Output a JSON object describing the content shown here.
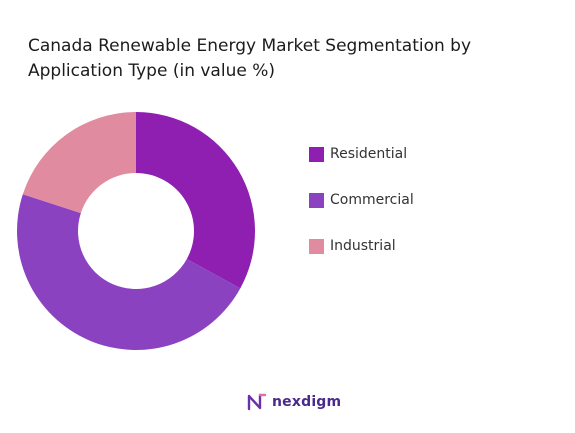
{
  "title": "Canada Renewable Energy Market Segmentation by Application Type (in value %)",
  "chart_data": {
    "type": "pie",
    "donut": true,
    "title": "Canada Renewable Energy Market Segmentation by Application Type (in value %)",
    "categories": [
      "Residential",
      "Commercial",
      "Industrial"
    ],
    "values": [
      33,
      47,
      20
    ],
    "colors": [
      "#8e1fb0",
      "#8b42c1",
      "#e08ba0"
    ],
    "legend_position": "right"
  },
  "legend": [
    {
      "label": "Residential",
      "color": "#8e1fb0"
    },
    {
      "label": "Commercial",
      "color": "#8b42c1"
    },
    {
      "label": "Industrial",
      "color": "#e08ba0"
    }
  ],
  "logo": {
    "text": "nexdigm"
  }
}
